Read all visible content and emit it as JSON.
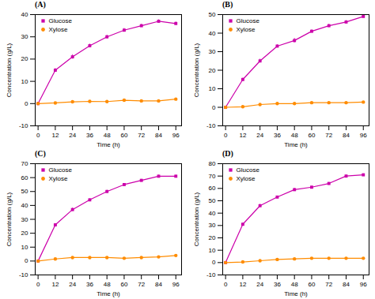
{
  "chart_data": [
    {
      "type": "line",
      "title": "(A)",
      "xlabel": "Time (h)",
      "ylabel": "Concentration (g/L)",
      "x": [
        0,
        12,
        24,
        36,
        48,
        60,
        72,
        84,
        96
      ],
      "xlim": [
        -2,
        100
      ],
      "xticks": [
        0,
        12,
        24,
        36,
        48,
        60,
        72,
        84,
        96
      ],
      "ylim": [
        -10,
        40
      ],
      "yticks": [
        -10,
        0,
        10,
        20,
        30,
        40
      ],
      "grid": false,
      "legend": "upper left",
      "series": [
        {
          "name": "Glucose",
          "color": "#CC00AA",
          "marker": "square",
          "values": [
            0,
            15,
            21,
            26,
            30,
            33,
            35,
            37,
            36
          ],
          "errors": [
            0.1,
            0.8,
            1.0,
            0.8,
            0.8,
            0.8,
            0.7,
            0.7,
            0.7
          ]
        },
        {
          "name": "Xylose",
          "color": "#FF8C00",
          "marker": "circle",
          "values": [
            0,
            0.3,
            0.8,
            1.0,
            0.9,
            1.5,
            1.2,
            1.2,
            2.0
          ],
          "errors": [
            0.05,
            0.1,
            0.1,
            0.1,
            0.1,
            0.15,
            0.1,
            0.1,
            0.15
          ]
        }
      ]
    },
    {
      "type": "line",
      "title": "(B)",
      "xlabel": "Time (h)",
      "ylabel": "Concentration (g/L)",
      "x": [
        0,
        12,
        24,
        36,
        48,
        60,
        72,
        84,
        96
      ],
      "xlim": [
        -2,
        100
      ],
      "xticks": [
        0,
        12,
        24,
        36,
        48,
        60,
        72,
        84,
        96
      ],
      "ylim": [
        -10,
        50
      ],
      "yticks": [
        -10,
        0,
        10,
        20,
        30,
        40,
        50
      ],
      "grid": false,
      "legend": "upper left",
      "series": [
        {
          "name": "Glucose",
          "color": "#CC00AA",
          "marker": "square",
          "values": [
            0,
            15,
            25,
            33,
            36,
            41,
            44,
            46,
            49
          ],
          "errors": [
            0.1,
            0.8,
            1.0,
            0.8,
            1.2,
            0.8,
            0.8,
            0.8,
            0.8
          ]
        },
        {
          "name": "Xylose",
          "color": "#FF8C00",
          "marker": "circle",
          "values": [
            0,
            0.3,
            1.5,
            2.0,
            2.0,
            2.5,
            2.5,
            2.5,
            2.8
          ],
          "errors": [
            0.05,
            0.1,
            0.1,
            0.1,
            0.1,
            0.1,
            0.1,
            0.1,
            0.1
          ]
        }
      ]
    },
    {
      "type": "line",
      "title": "(C)",
      "xlabel": "Time (h)",
      "ylabel": "Concentration (g/L)",
      "x": [
        0,
        12,
        24,
        36,
        48,
        60,
        72,
        84,
        96
      ],
      "xlim": [
        -2,
        100
      ],
      "xticks": [
        0,
        12,
        24,
        36,
        48,
        60,
        72,
        84,
        96
      ],
      "ylim": [
        -10,
        70
      ],
      "yticks": [
        -10,
        0,
        10,
        20,
        30,
        40,
        50,
        60,
        70
      ],
      "grid": false,
      "legend": "upper left",
      "series": [
        {
          "name": "Glucose",
          "color": "#CC00AA",
          "marker": "square",
          "values": [
            0,
            26,
            37,
            44,
            50,
            55,
            58,
            61,
            61
          ],
          "errors": [
            0.1,
            1.0,
            1.2,
            0.8,
            1.0,
            0.8,
            0.8,
            0.8,
            0.8
          ]
        },
        {
          "name": "Xylose",
          "color": "#FF8C00",
          "marker": "circle",
          "values": [
            0,
            1.5,
            2.5,
            2.5,
            2.5,
            2.0,
            2.5,
            3.0,
            4.0
          ],
          "errors": [
            0.05,
            0.1,
            0.15,
            0.1,
            0.1,
            0.1,
            0.1,
            0.1,
            0.2
          ]
        }
      ]
    },
    {
      "type": "line",
      "title": "(D)",
      "xlabel": "Time (h)",
      "ylabel": "Concentration (g/L)",
      "x": [
        0,
        12,
        24,
        36,
        48,
        60,
        72,
        84,
        96
      ],
      "xlim": [
        -2,
        100
      ],
      "xticks": [
        0,
        12,
        24,
        36,
        48,
        60,
        72,
        84,
        96
      ],
      "ylim": [
        -10,
        80
      ],
      "yticks": [
        -10,
        0,
        10,
        20,
        30,
        40,
        50,
        60,
        70,
        80
      ],
      "grid": false,
      "legend": "upper left",
      "series": [
        {
          "name": "Glucose",
          "color": "#CC00AA",
          "marker": "square",
          "values": [
            0,
            31,
            46,
            53,
            59,
            61,
            64,
            70,
            71
          ],
          "errors": [
            0.1,
            1.0,
            1.2,
            0.8,
            1.2,
            0.8,
            0.8,
            0.8,
            0.8
          ]
        },
        {
          "name": "Xylose",
          "color": "#FF8C00",
          "marker": "circle",
          "values": [
            0,
            0.5,
            1.5,
            2.5,
            3.0,
            3.5,
            3.5,
            3.5,
            3.5
          ],
          "errors": [
            0.05,
            0.1,
            0.15,
            0.1,
            0.1,
            0.1,
            0.1,
            0.1,
            0.1
          ]
        }
      ]
    }
  ]
}
